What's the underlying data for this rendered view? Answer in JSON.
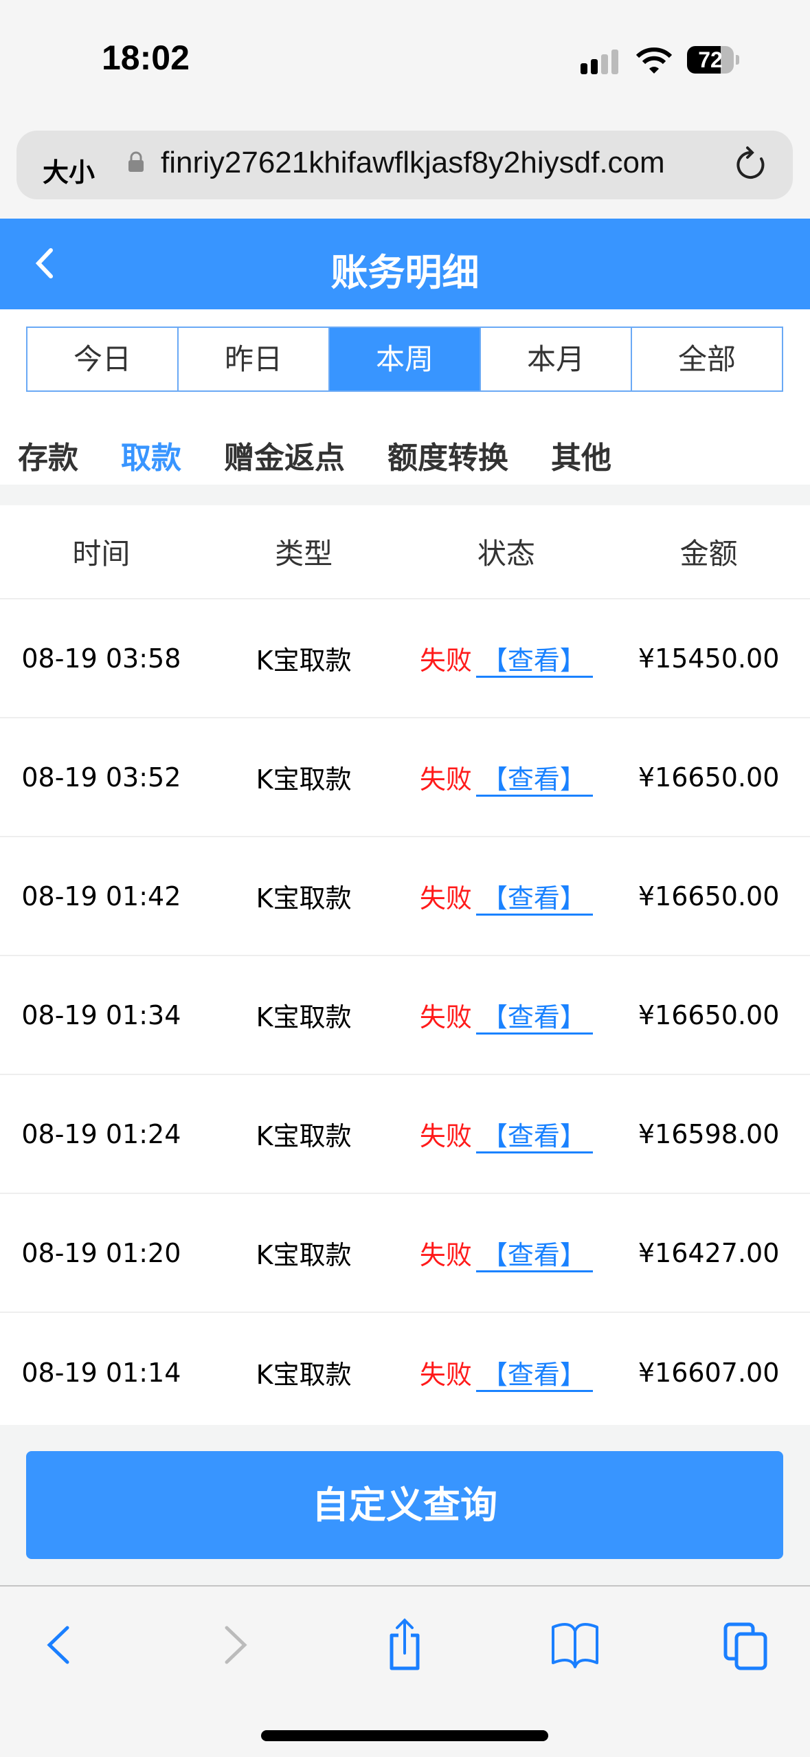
{
  "status_bar": {
    "time": "18:02",
    "battery": "72"
  },
  "browser": {
    "text_size_label": "大小",
    "url": "finriy27621khifawflkjasf8y2hiysdf.com"
  },
  "header": {
    "title": "账务明细"
  },
  "period_tabs": [
    {
      "label": "今日",
      "active": false
    },
    {
      "label": "昨日",
      "active": false
    },
    {
      "label": "本周",
      "active": true
    },
    {
      "label": "本月",
      "active": false
    },
    {
      "label": "全部",
      "active": false
    }
  ],
  "category_tabs": [
    {
      "label": "存款",
      "active": false
    },
    {
      "label": "取款",
      "active": true
    },
    {
      "label": "赠金返点",
      "active": false
    },
    {
      "label": "额度转换",
      "active": false
    },
    {
      "label": "其他",
      "active": false
    }
  ],
  "table": {
    "headers": [
      "时间",
      "类型",
      "状态",
      "金额"
    ],
    "rows": [
      {
        "time": "08-19 03:58",
        "type": "K宝取款",
        "status": "失败",
        "link": "【查看】",
        "amount": "¥15450.00"
      },
      {
        "time": "08-19 03:52",
        "type": "K宝取款",
        "status": "失败",
        "link": "【查看】",
        "amount": "¥16650.00"
      },
      {
        "time": "08-19 01:42",
        "type": "K宝取款",
        "status": "失败",
        "link": "【查看】",
        "amount": "¥16650.00"
      },
      {
        "time": "08-19 01:34",
        "type": "K宝取款",
        "status": "失败",
        "link": "【查看】",
        "amount": "¥16650.00"
      },
      {
        "time": "08-19 01:24",
        "type": "K宝取款",
        "status": "失败",
        "link": "【查看】",
        "amount": "¥16598.00"
      },
      {
        "time": "08-19 01:20",
        "type": "K宝取款",
        "status": "失败",
        "link": "【查看】",
        "amount": "¥16427.00"
      },
      {
        "time": "08-19 01:14",
        "type": "K宝取款",
        "status": "失败",
        "link": "【查看】",
        "amount": "¥16607.00"
      }
    ]
  },
  "query_button": "自定义查询",
  "colors": {
    "accent": "#3895ff",
    "fail": "#ff1a1a",
    "link": "#1a82ff"
  }
}
